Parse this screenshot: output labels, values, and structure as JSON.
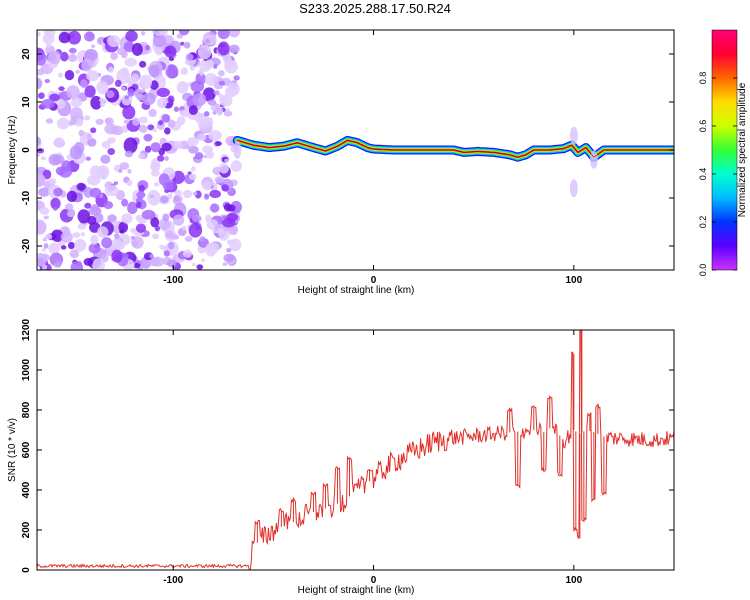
{
  "title": "S233.2025.288.17.50.R24",
  "colors": {
    "snr_line": "#e0302a",
    "noise_purple": "#7a1cf0",
    "axis": "#000000"
  },
  "chart_data": [
    {
      "type": "heatmap",
      "name": "spectrogram",
      "xlabel": "Height of straight line (km)",
      "ylabel": "Frequency (Hz)",
      "xlim": [
        -168,
        150
      ],
      "ylim": [
        -25,
        25
      ],
      "x_ticks": [
        -100,
        0,
        100
      ],
      "x_tick_labels": [
        "-100",
        "0",
        "100"
      ],
      "y_ticks": [
        -20,
        -10,
        0,
        10,
        20
      ],
      "y_tick_labels": [
        "-20",
        "-10",
        "0",
        "10",
        "20"
      ],
      "noise_region_x": [
        -168,
        -68
      ],
      "signal_start_x": -68,
      "ridge": {
        "x": [
          -68,
          -60,
          -52,
          -45,
          -38,
          -30,
          -24,
          -18,
          -13,
          -8,
          -3,
          0,
          10,
          20,
          30,
          40,
          45,
          52,
          60,
          68,
          72,
          76,
          80,
          88,
          95,
          99,
          102,
          106,
          110,
          115,
          125,
          135,
          148
        ],
        "frequency": [
          2,
          1,
          0.5,
          0.8,
          1.5,
          0.5,
          -0.2,
          0.8,
          2,
          1.5,
          0.5,
          0.2,
          0,
          0,
          0,
          0,
          -0.5,
          -0.3,
          -0.5,
          -1,
          -1.5,
          -1,
          0,
          0,
          0.3,
          1,
          -0.5,
          0.5,
          -1.5,
          0,
          0,
          0,
          0
        ]
      },
      "colorbar": {
        "label": "Normalized spectral amplitude",
        "range": [
          0,
          1
        ],
        "ticks": [
          0.0,
          0.2,
          0.4,
          0.6,
          0.8
        ],
        "tick_labels": [
          "0.0",
          "0.2",
          "0.4",
          "0.6",
          "0.8"
        ],
        "stops": [
          "#cc33ff",
          "#5b00ff",
          "#0033ff",
          "#00bbff",
          "#00ffd0",
          "#33ff33",
          "#ccff00",
          "#ffdd00",
          "#ff6600",
          "#ff0030",
          "#ff0077"
        ]
      }
    },
    {
      "type": "line",
      "name": "snr",
      "xlabel": "Height of straight line (km)",
      "ylabel": "SNR (10 * v/v)",
      "xlim": [
        -168,
        150
      ],
      "ylim": [
        0,
        1200
      ],
      "x_ticks": [
        -100,
        0,
        100
      ],
      "x_tick_labels": [
        "-100",
        "0",
        "100"
      ],
      "y_ticks": [
        0,
        200,
        400,
        600,
        800,
        1000,
        1200
      ],
      "y_tick_labels": [
        "0",
        "200",
        "400",
        "600",
        "800",
        "1000",
        "1200"
      ],
      "envelope": {
        "x": [
          -168,
          -62,
          -60,
          -50,
          -40,
          -30,
          -20,
          -10,
          0,
          10,
          20,
          30,
          40,
          60,
          70,
          80,
          85,
          90,
          95,
          100,
          103,
          106,
          110,
          114,
          120,
          130,
          140,
          150
        ],
        "y": [
          20,
          20,
          120,
          200,
          240,
          290,
          320,
          380,
          460,
          540,
          590,
          640,
          660,
          680,
          690,
          700,
          690,
          720,
          640,
          700,
          680,
          700,
          690,
          670,
          660,
          655,
          650,
          660
        ]
      },
      "spikes": {
        "x": [
          -58,
          -46,
          -40,
          -30,
          -24,
          -18,
          -12,
          -2,
          68,
          72,
          80,
          85,
          88,
          93,
          100,
          101,
          103,
          104,
          105,
          108,
          110,
          112,
          115
        ],
        "y": [
          240,
          300,
          350,
          380,
          420,
          510,
          560,
          500,
          800,
          420,
          810,
          500,
          860,
          480,
          1080,
          200,
          160,
          1210,
          250,
          780,
          350,
          820,
          380
        ]
      }
    }
  ]
}
